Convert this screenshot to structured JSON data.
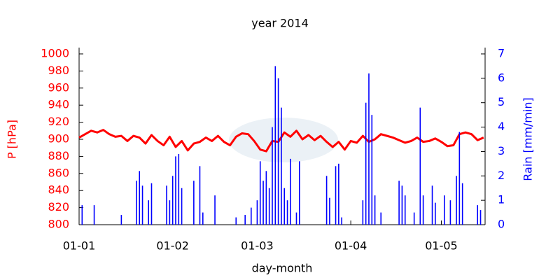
{
  "chart_data": {
    "type": "line",
    "title": "year 2014",
    "x_label": "day-month",
    "y_label": "P [hPa]",
    "y2_label": "Rain [mm/min]",
    "xlim": [
      0,
      134.5
    ],
    "xticks": [
      {
        "value": 0,
        "label": "01-01"
      },
      {
        "value": 31,
        "label": "01-02"
      },
      {
        "value": 59,
        "label": "01-03"
      },
      {
        "value": 90,
        "label": "01-04"
      },
      {
        "value": 120,
        "label": "01-05"
      }
    ],
    "ylim": [
      800,
      1000
    ],
    "yticks": [
      800,
      820,
      840,
      860,
      880,
      900,
      920,
      940,
      960,
      980,
      1000
    ],
    "y2lim": [
      0,
      7
    ],
    "y2ticks": [
      0,
      1,
      2,
      3,
      4,
      5,
      6,
      7
    ],
    "series": [
      {
        "type": "line",
        "color": "#ff0000",
        "x": [
          0,
          2,
          4,
          6,
          8,
          10,
          12,
          14,
          16,
          18,
          20,
          22,
          24,
          26,
          28,
          30,
          32,
          34,
          36,
          38,
          40,
          42,
          44,
          46,
          48,
          50,
          52,
          54,
          56,
          58,
          60,
          62,
          64,
          66,
          68,
          70,
          72,
          74,
          76,
          78,
          80,
          82,
          84,
          86,
          88,
          90,
          92,
          94,
          96,
          98,
          100,
          102,
          104,
          106,
          108,
          110,
          112,
          114,
          116,
          118,
          120,
          122,
          124,
          126,
          128,
          130,
          132,
          134
        ],
        "values": [
          902,
          906,
          910,
          908,
          911,
          906,
          903,
          904,
          898,
          904,
          902,
          895,
          905,
          898,
          893,
          903,
          891,
          898,
          887,
          895,
          897,
          902,
          898,
          904,
          897,
          893,
          903,
          907,
          906,
          898,
          888,
          886,
          898,
          897,
          908,
          903,
          910,
          900,
          905,
          899,
          904,
          897,
          891,
          897,
          888,
          898,
          896,
          904,
          897,
          900,
          906,
          904,
          902,
          899,
          896,
          898,
          902,
          897,
          898,
          901,
          897,
          892,
          893,
          906,
          908,
          906,
          899,
          902
        ]
      },
      {
        "type": "bar",
        "axis": "y2",
        "color": "#0000ff",
        "x": [
          1,
          5,
          14,
          19,
          20,
          21,
          23,
          24,
          29,
          30,
          31,
          32,
          33,
          34,
          38,
          40,
          41,
          45,
          52,
          55,
          57,
          59,
          60,
          61,
          62,
          63,
          64,
          65,
          66,
          67,
          68,
          69,
          70,
          72,
          73,
          82,
          83,
          85,
          86,
          87,
          94,
          95,
          96,
          97,
          98,
          100,
          106,
          107,
          108,
          111,
          113,
          114,
          117,
          118,
          121,
          123,
          125,
          126,
          127,
          132,
          133
        ],
        "values": [
          0.8,
          0.8,
          0.4,
          1.8,
          2.2,
          1.6,
          1.0,
          1.7,
          1.6,
          1.0,
          2.0,
          2.8,
          2.9,
          1.5,
          1.8,
          2.4,
          0.5,
          1.2,
          0.3,
          0.4,
          0.7,
          1.0,
          2.6,
          1.8,
          2.2,
          1.5,
          4.0,
          6.5,
          6.0,
          4.8,
          1.5,
          1.0,
          2.7,
          0.5,
          2.6,
          2.0,
          1.1,
          2.4,
          2.5,
          0.3,
          1.0,
          5.0,
          6.2,
          4.5,
          1.2,
          0.5,
          1.8,
          1.6,
          1.2,
          0.5,
          4.8,
          1.2,
          1.6,
          0.9,
          1.2,
          1.0,
          2.0,
          3.8,
          1.7,
          0.8,
          0.6
        ]
      }
    ]
  }
}
